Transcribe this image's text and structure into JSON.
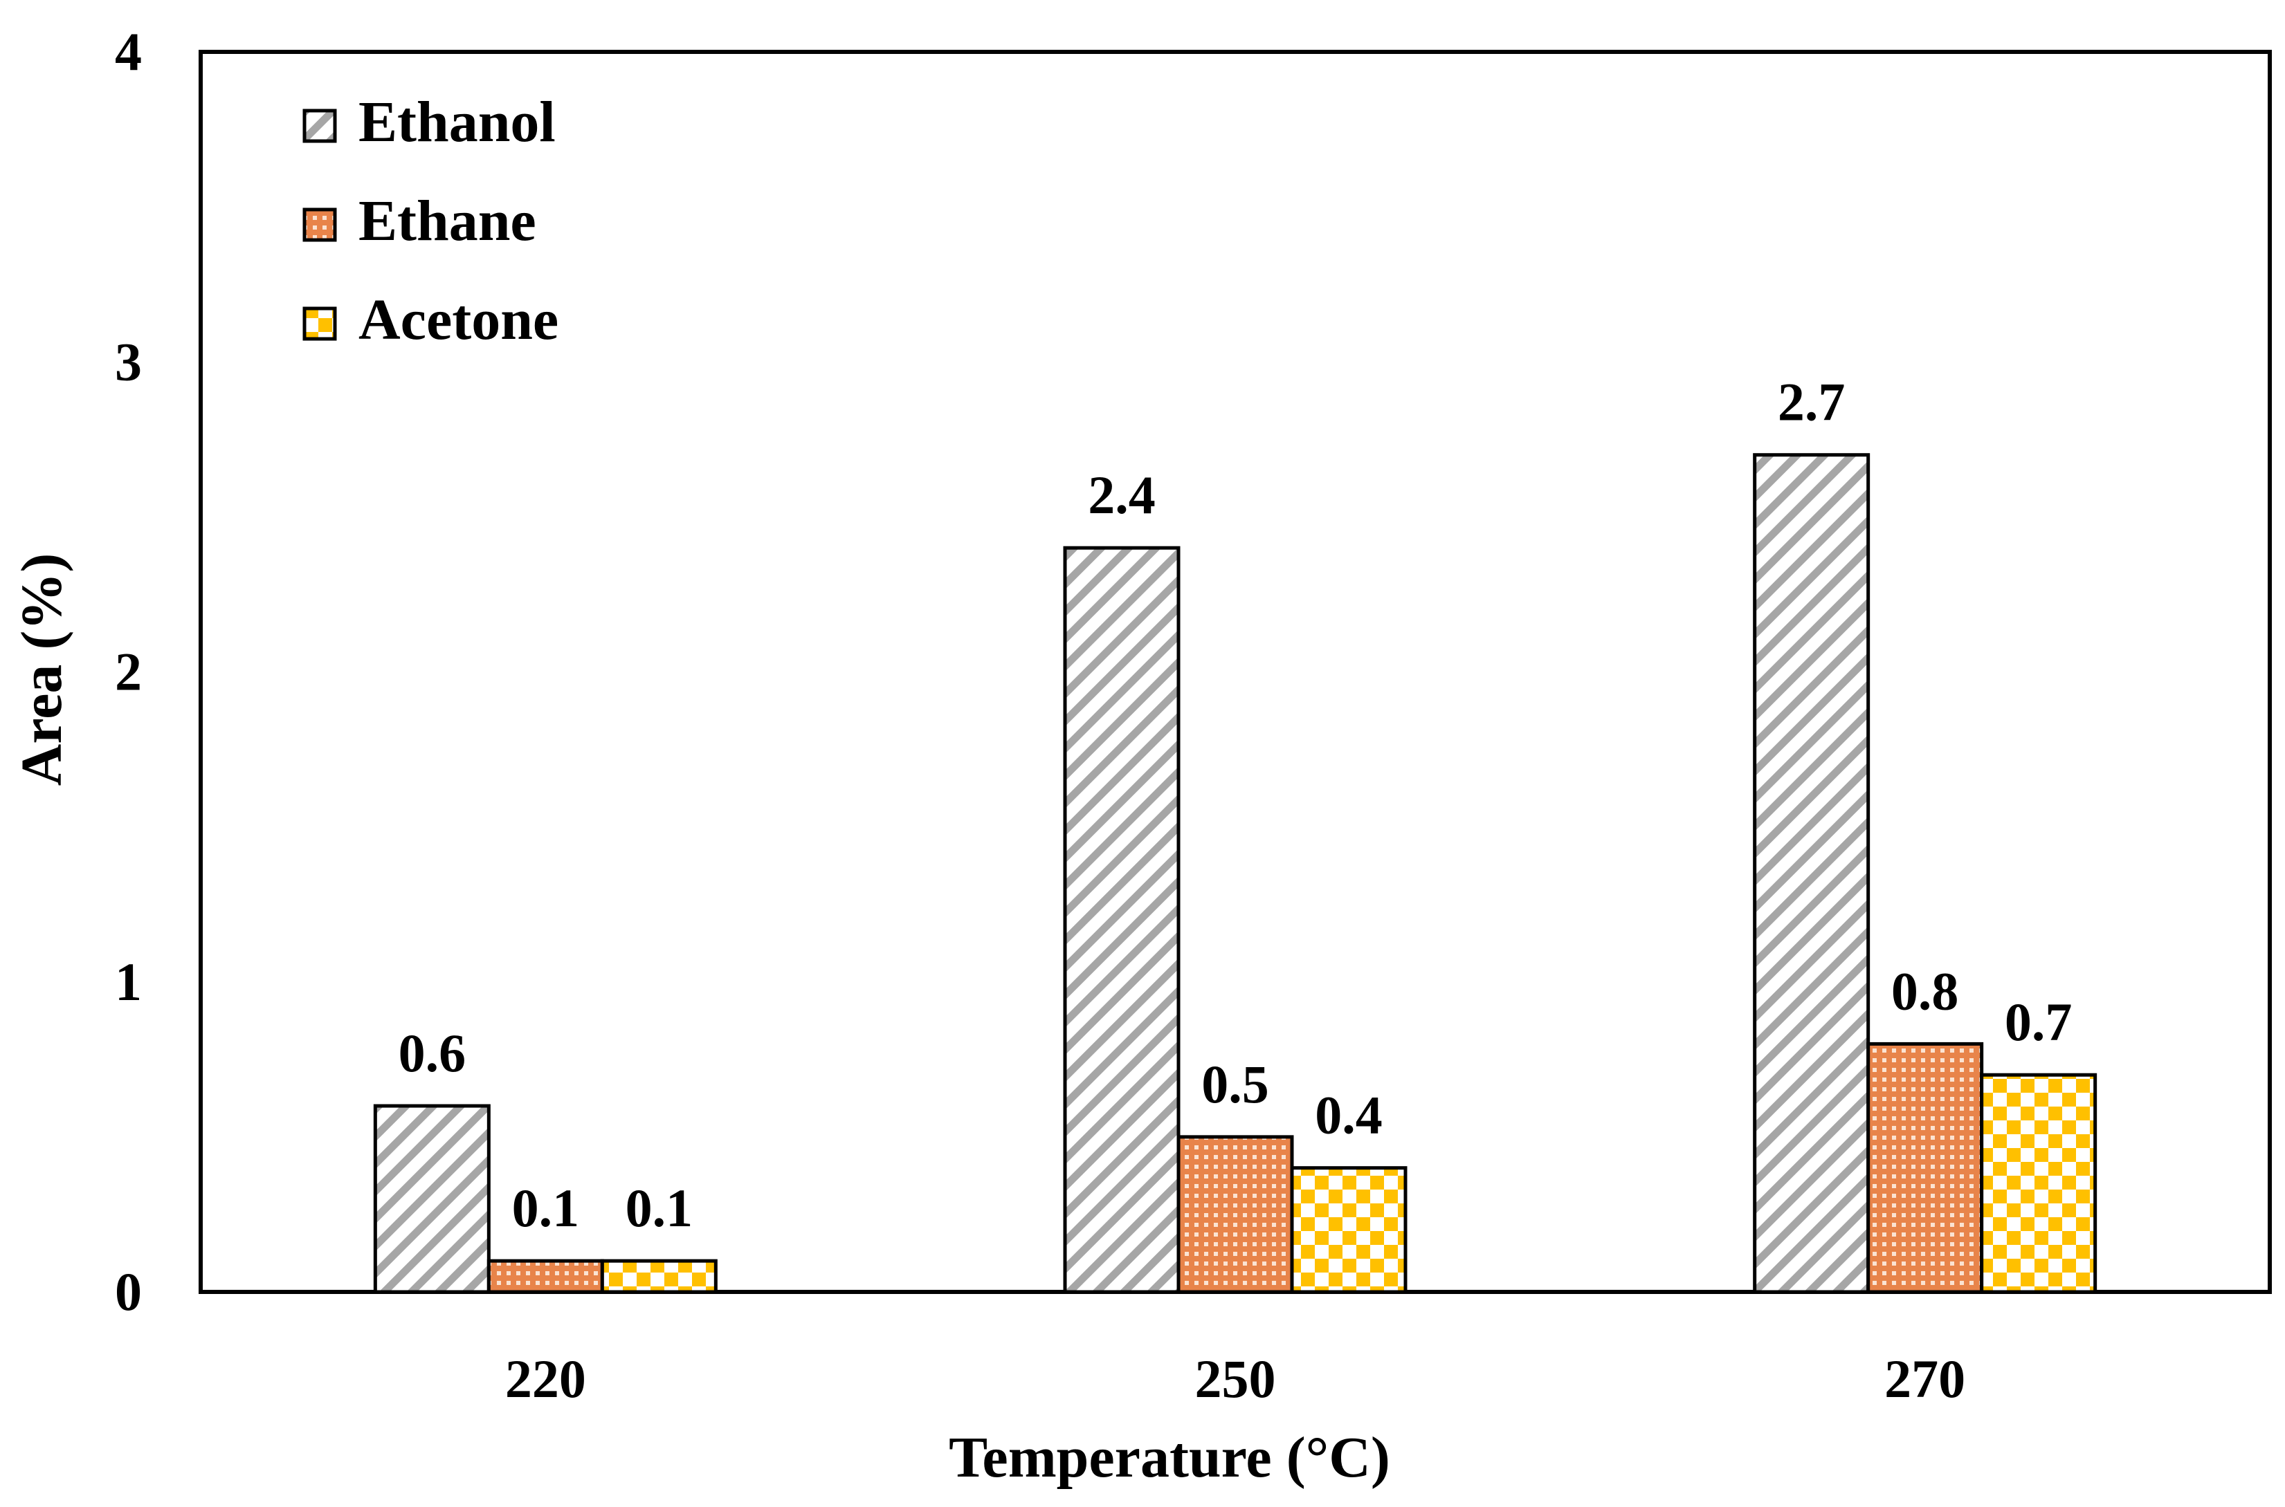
{
  "chart_data": {
    "type": "bar",
    "title": "",
    "xlabel": "Temperature (°C)",
    "ylabel": "Area (%)",
    "categories": [
      "220",
      "250",
      "270"
    ],
    "series": [
      {
        "name": "Ethanol",
        "values": [
          0.6,
          2.4,
          2.7
        ],
        "labels": [
          "0.6",
          "2.4",
          "2.7"
        ],
        "pattern": "hatch"
      },
      {
        "name": "Ethane",
        "values": [
          0.1,
          0.5,
          0.8
        ],
        "labels": [
          "0.1",
          "0.5",
          "0.8"
        ],
        "pattern": "crosshatch"
      },
      {
        "name": "Acetone",
        "values": [
          0.1,
          0.4,
          0.7
        ],
        "labels": [
          "0.1",
          "0.4",
          "0.7"
        ],
        "pattern": "checker"
      }
    ],
    "ylim": [
      0,
      4
    ],
    "yticks": [
      0,
      1,
      2,
      3,
      4
    ],
    "ytick_labels": [
      "0",
      "1",
      "2",
      "3",
      "4"
    ],
    "legend_position": "top-left",
    "grid": false
  },
  "colors": {
    "ethanol_stripe": "#a6a6a6",
    "ethanol_bg": "#ffffff",
    "ethane_fill": "#e8844a",
    "ethane_grid": "#fbe3d2",
    "acetone_fill": "#ffc000",
    "acetone_bg": "#ffffff",
    "axis": "#000000"
  }
}
